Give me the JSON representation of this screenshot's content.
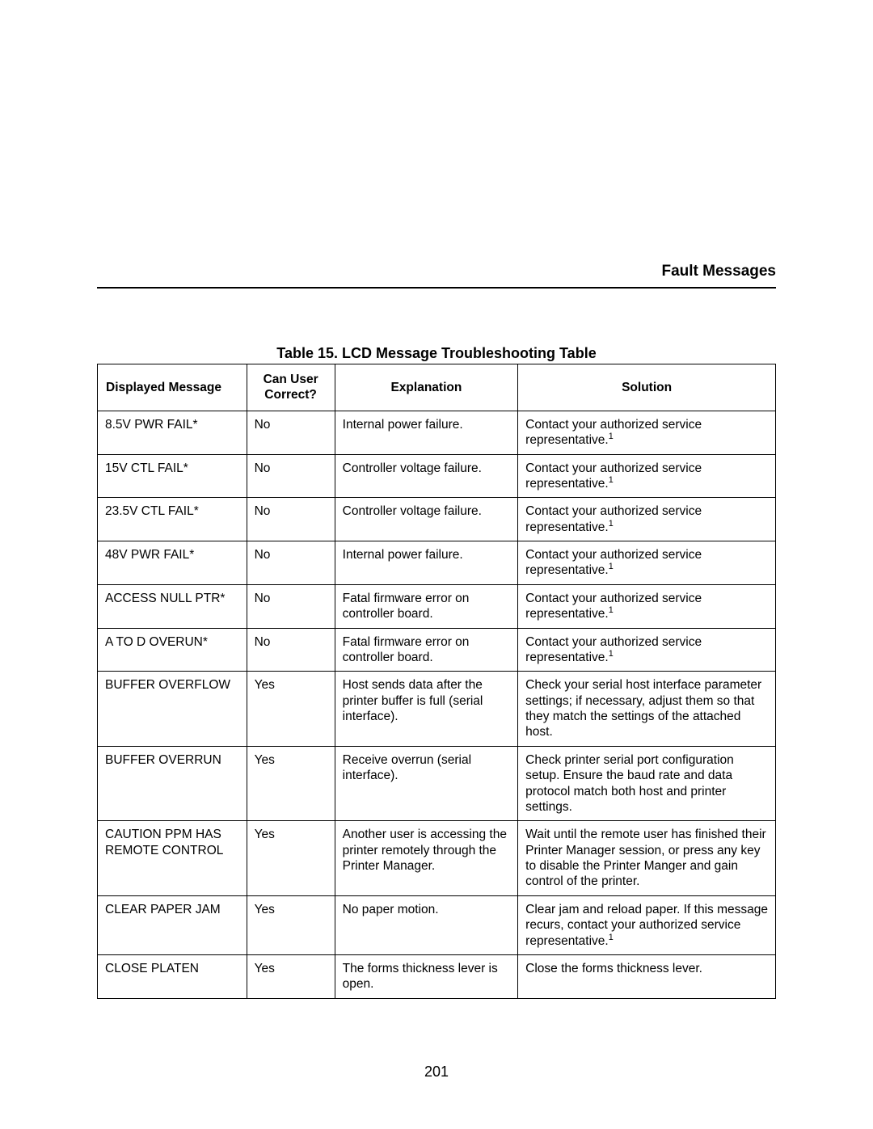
{
  "section_title": "Fault Messages",
  "table_title": "Table 15. LCD Message Troubleshooting Table",
  "page_number": "201",
  "colors": {
    "text": "#000000",
    "bg": "#ffffff",
    "border": "#000000"
  },
  "typography": {
    "font_family": "Arial, Helvetica, sans-serif",
    "body_size_pt": 11,
    "header_size_pt": 13,
    "header_weight": "bold"
  },
  "table": {
    "type": "table",
    "columns": [
      {
        "label": "Displayed Message",
        "width_pct": 22,
        "align": "left"
      },
      {
        "label": "Can User Correct?",
        "width_pct": 13,
        "align": "center"
      },
      {
        "label": "Explanation",
        "width_pct": 27,
        "align": "center"
      },
      {
        "label": "Solution",
        "width_pct": 38,
        "align": "center"
      }
    ],
    "footnote_ref": "1",
    "rows": [
      {
        "message": "8.5V PWR FAIL*",
        "correct": "No",
        "explanation": "Internal power failure.",
        "solution": "Contact your authorized service representative.",
        "solution_has_footnote": true
      },
      {
        "message": "15V CTL FAIL*",
        "correct": "No",
        "explanation": "Controller voltage failure.",
        "solution": "Contact your authorized service representative.",
        "solution_has_footnote": true
      },
      {
        "message": "23.5V CTL FAIL*",
        "correct": "No",
        "explanation": "Controller voltage failure.",
        "solution": "Contact your authorized service representative.",
        "solution_has_footnote": true
      },
      {
        "message": "48V PWR FAIL*",
        "correct": "No",
        "explanation": "Internal power failure.",
        "solution": "Contact your authorized service representative.",
        "solution_has_footnote": true
      },
      {
        "message": "ACCESS NULL PTR*",
        "correct": "No",
        "explanation": "Fatal firmware error on controller board.",
        "solution": "Contact your authorized service representative.",
        "solution_has_footnote": true
      },
      {
        "message": "A TO D OVERUN*",
        "correct": "No",
        "explanation": "Fatal firmware error on controller board.",
        "solution": "Contact your authorized service representative.",
        "solution_has_footnote": true
      },
      {
        "message": "BUFFER OVERFLOW",
        "correct": "Yes",
        "explanation": "Host sends data after the printer buffer is full (serial interface).",
        "solution": "Check your serial host interface parameter settings; if necessary, adjust them so that they match the settings of the attached host.",
        "solution_has_footnote": false
      },
      {
        "message": "BUFFER OVERRUN",
        "correct": "Yes",
        "explanation": "Receive overrun (serial interface).",
        "solution": "Check printer serial port configuration setup. Ensure the baud rate and data protocol match both host and printer settings.",
        "solution_has_footnote": false
      },
      {
        "message": "CAUTION PPM HAS REMOTE CONTROL",
        "correct": "Yes",
        "explanation": "Another user is accessing the printer remotely through the Printer Manager.",
        "solution": "Wait until the remote user has finished their Printer Manager session, or press any key to disable the Printer Manger and gain control of the printer.",
        "solution_has_footnote": false
      },
      {
        "message": "CLEAR PAPER JAM",
        "correct": "Yes",
        "explanation": "No paper motion.",
        "solution": "Clear jam and reload paper. If this message recurs, contact your authorized service representative.",
        "solution_has_footnote": true
      },
      {
        "message": "CLOSE PLATEN",
        "correct": "Yes",
        "explanation": "The forms thickness lever is open.",
        "solution": "Close the forms thickness lever.",
        "solution_has_footnote": false
      }
    ]
  }
}
